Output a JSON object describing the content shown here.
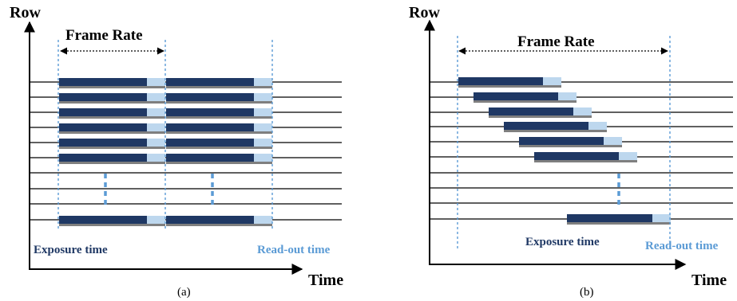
{
  "colors": {
    "exposure": "#1f3864",
    "readout": "#bdd7ee",
    "shadow": "#7f7f7f",
    "guide": "#5b9bd5",
    "exposure_text": "#1f3864",
    "readout_text": "#5b9bd5"
  },
  "panels": [
    {
      "id": "a",
      "y_axis_label": "Row",
      "x_axis_label": "Time",
      "frame_rate_label": "Frame Rate",
      "exposure_label": "Exposure time",
      "readout_label": "Read-out time",
      "caption": "(a)",
      "shutter": "global"
    },
    {
      "id": "b",
      "y_axis_label": "Row",
      "x_axis_label": "Time",
      "frame_rate_label": "Frame Rate",
      "exposure_label": "Exposure time",
      "readout_label": "Read-out time",
      "caption": "(b)",
      "shutter": "rolling"
    }
  ]
}
